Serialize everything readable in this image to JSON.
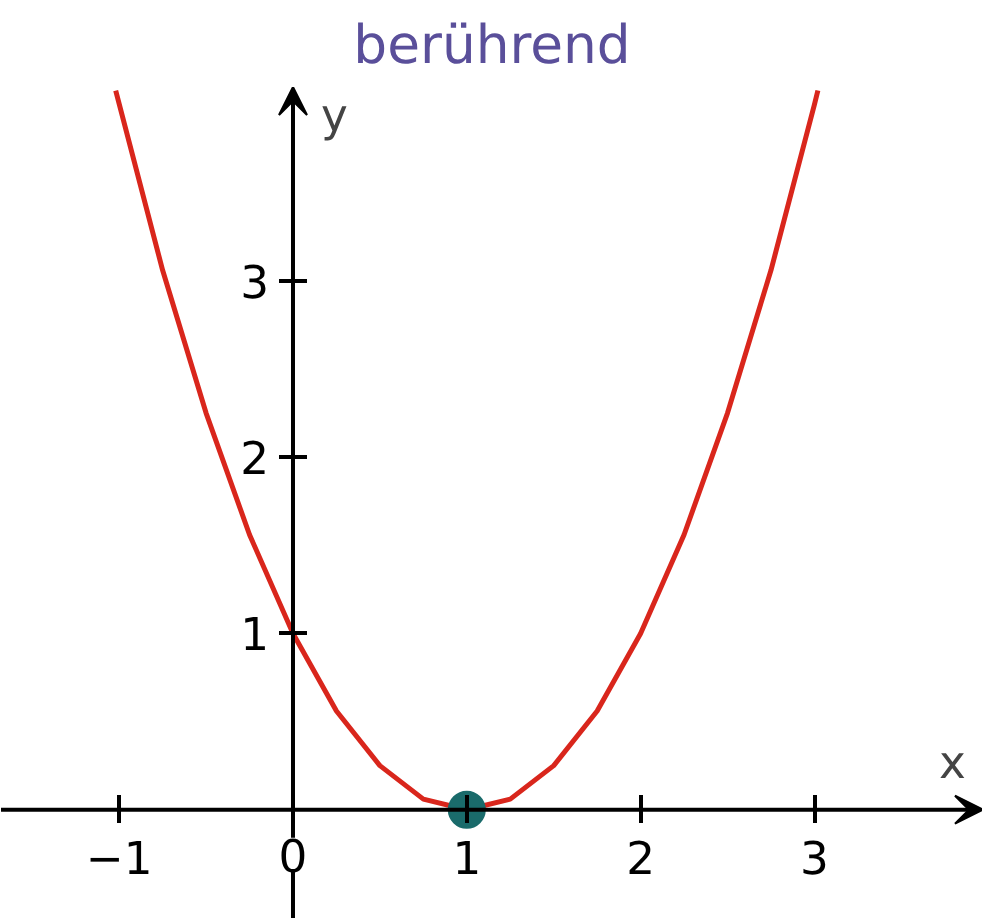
{
  "chart_data": {
    "type": "line",
    "title": "berührend",
    "xlabel": "x",
    "ylabel": "y",
    "xlim": [
      -1.68,
      3.97
    ],
    "ylim": [
      -0.62,
      4.1
    ],
    "xticks": [
      -1,
      0,
      1,
      2,
      3
    ],
    "yticks": [
      1,
      2,
      3
    ],
    "grid": false,
    "series": [
      {
        "type": "line",
        "color": "#d9261c",
        "marker": "none",
        "x": [
          -1.02,
          -0.75,
          -0.5,
          -0.25,
          0,
          0.25,
          0.5,
          0.75,
          1,
          1.25,
          1.5,
          1.75,
          2,
          2.25,
          2.5,
          2.75,
          3,
          3.02
        ],
        "values": [
          4.08,
          3.06,
          2.25,
          1.56,
          1,
          0.56,
          0.25,
          0.06,
          0,
          0.06,
          0.25,
          0.56,
          1,
          1.56,
          2.25,
          3.06,
          4,
          4.08
        ]
      },
      {
        "type": "scatter",
        "color": "#1a6b6b",
        "marker": "circle",
        "x": [
          1
        ],
        "values": [
          0
        ]
      }
    ]
  }
}
